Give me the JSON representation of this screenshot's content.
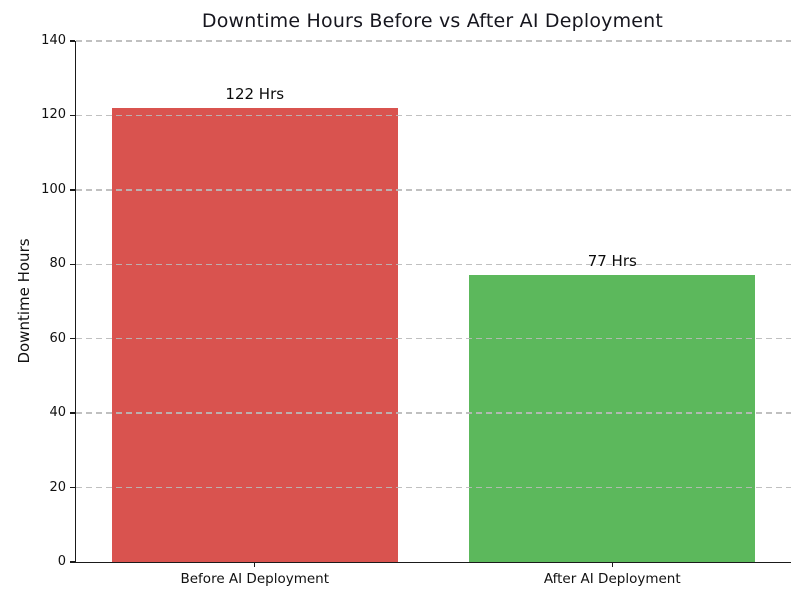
{
  "chart_data": {
    "type": "bar",
    "title": "Downtime Hours Before vs After AI Deployment",
    "ylabel": "Downtime Hours",
    "xlabel": "",
    "categories": [
      "Before AI Deployment",
      "After AI Deployment"
    ],
    "values": [
      122,
      77
    ],
    "bar_labels": [
      "122 Hrs",
      "77 Hrs"
    ],
    "bar_colors": [
      "#d9534f",
      "#5cb85c"
    ],
    "ylim": [
      0,
      140
    ],
    "yticks": [
      0,
      20,
      40,
      60,
      80,
      100,
      120,
      140
    ],
    "grid": "horizontal-dashed",
    "legend": "none"
  }
}
